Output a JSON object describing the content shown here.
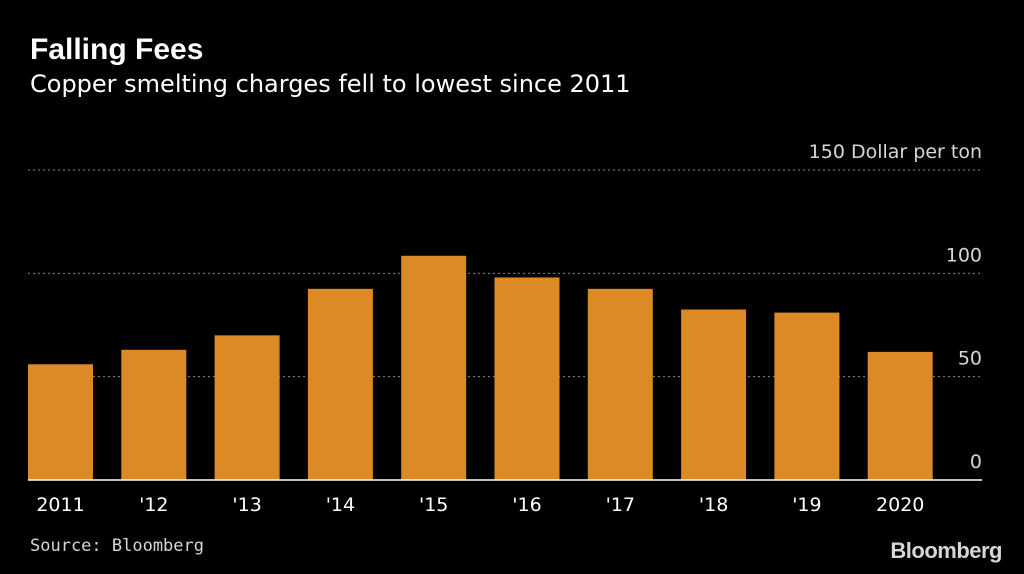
{
  "title": "Falling Fees",
  "subtitle": "Copper smelting charges fell to lowest since 2011",
  "source": "Source: Bloomberg",
  "brand": "Bloomberg",
  "colors": {
    "background": "#000000",
    "bar": "#db8a26",
    "grid": "#8a8a8a",
    "text": "#ffffff",
    "muted": "#d6d6d6"
  },
  "chart_data": {
    "type": "bar",
    "title": "Falling Fees",
    "subtitle": "Copper smelting charges fell to lowest since 2011",
    "xlabel": "",
    "ylabel": "Dollar per ton",
    "categories": [
      "2011",
      "'12",
      "'13",
      "'14",
      "'15",
      "'16",
      "'17",
      "'18",
      "'19",
      "2020"
    ],
    "values": [
      56,
      63,
      70,
      92.5,
      108.5,
      98,
      92.5,
      82.5,
      81,
      62
    ],
    "ylim": [
      0,
      150
    ],
    "yticks": [
      0,
      50,
      100,
      150
    ],
    "ytick_labels": [
      "0",
      "50",
      "100",
      "150 Dollar per ton"
    ],
    "grid": true
  }
}
